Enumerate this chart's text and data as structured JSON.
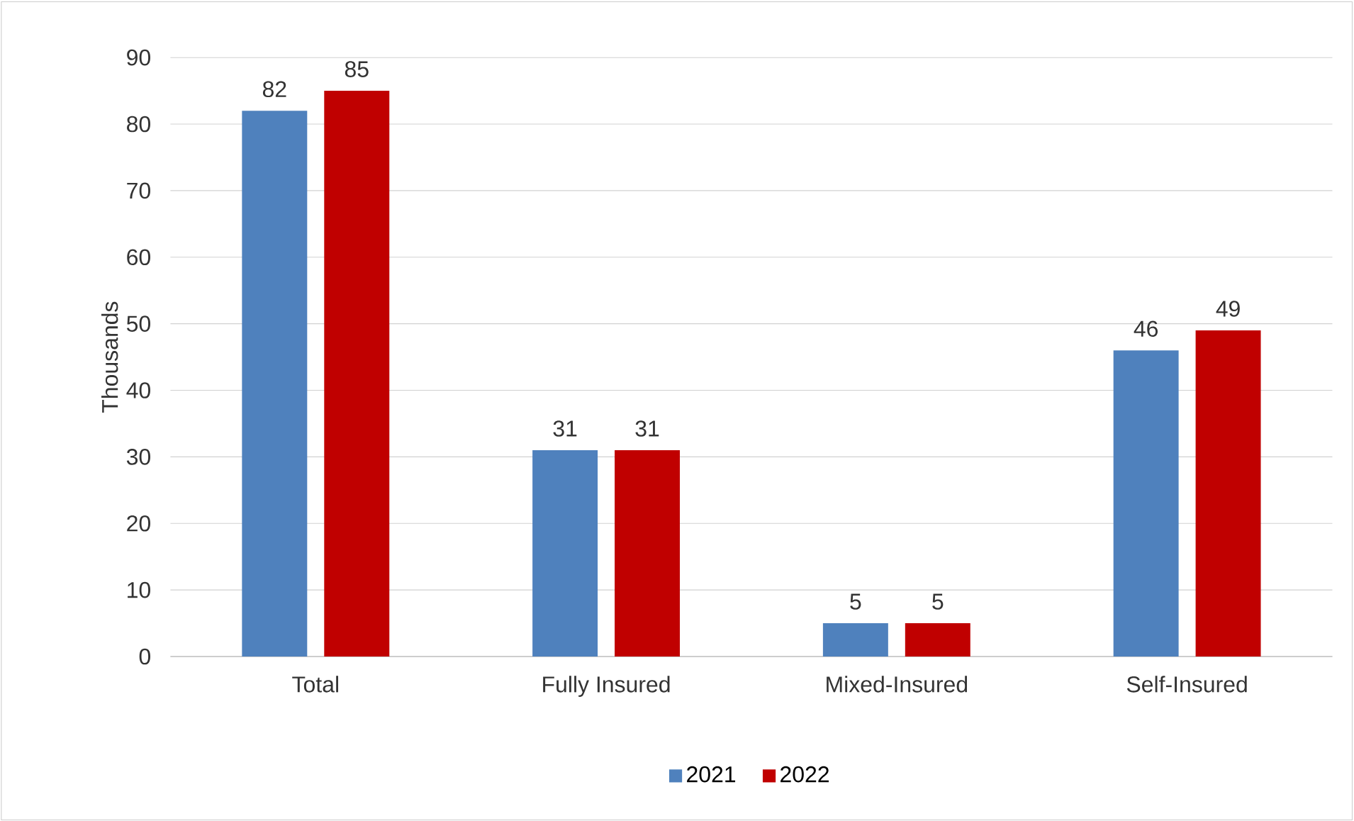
{
  "chart_data": {
    "type": "bar",
    "ylabel": "Thousands",
    "categories": [
      "Total",
      "Fully Insured",
      "Mixed-Insured",
      "Self-Insured"
    ],
    "series": [
      {
        "name": "2021",
        "color": "#4f81bd",
        "values": [
          82,
          31,
          5,
          46
        ]
      },
      {
        "name": "2022",
        "color": "#c00000",
        "values": [
          85,
          31,
          5,
          49
        ]
      }
    ],
    "ylim": [
      0,
      90
    ],
    "yticks": [
      0,
      10,
      20,
      30,
      40,
      50,
      60,
      70,
      80,
      90
    ],
    "grid": "y",
    "legend": "bottom",
    "data_labels": true
  }
}
